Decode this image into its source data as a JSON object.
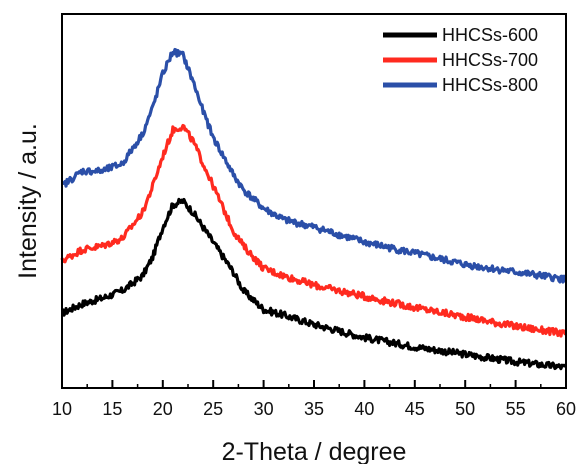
{
  "chart_data": {
    "type": "line",
    "xlabel": "2-Theta / degree",
    "ylabel": "Intensity / a.u.",
    "xlim": [
      10,
      60
    ],
    "ylim": [
      0,
      1
    ],
    "x_ticks": [
      10,
      15,
      20,
      25,
      30,
      35,
      40,
      45,
      50,
      55,
      60
    ],
    "y_ticks_labeled": false,
    "grid": false,
    "legend_position": "top-right",
    "series": [
      {
        "name": "HHCSs-600",
        "color": "#000000",
        "x": [
          10,
          12,
          14,
          16,
          18,
          19,
          20,
          21,
          22,
          23,
          24,
          25,
          26,
          27,
          28,
          30,
          32,
          35,
          40,
          45,
          50,
          55,
          60
        ],
        "y": [
          0.2,
          0.225,
          0.24,
          0.26,
          0.3,
          0.35,
          0.43,
          0.49,
          0.5,
          0.47,
          0.43,
          0.39,
          0.35,
          0.31,
          0.26,
          0.21,
          0.195,
          0.17,
          0.135,
          0.11,
          0.09,
          0.07,
          0.055
        ]
      },
      {
        "name": "HHCSs-700",
        "color": "#ff2a1f",
        "x": [
          10,
          12,
          14,
          16,
          18,
          19,
          20,
          21,
          22,
          23,
          24,
          25,
          26,
          27,
          28,
          30,
          32,
          35,
          40,
          45,
          50,
          55,
          60
        ],
        "y": [
          0.34,
          0.37,
          0.38,
          0.4,
          0.47,
          0.54,
          0.62,
          0.69,
          0.7,
          0.66,
          0.6,
          0.54,
          0.48,
          0.42,
          0.38,
          0.32,
          0.3,
          0.275,
          0.245,
          0.215,
          0.19,
          0.165,
          0.145
        ]
      },
      {
        "name": "HHCSs-800",
        "color": "#2b4fa8",
        "x": [
          10,
          12,
          14,
          16,
          18,
          19,
          20,
          21,
          22,
          23,
          24,
          25,
          26,
          27,
          28,
          30,
          32,
          35,
          40,
          45,
          50,
          55,
          60
        ],
        "y": [
          0.54,
          0.58,
          0.58,
          0.6,
          0.68,
          0.75,
          0.84,
          0.9,
          0.89,
          0.82,
          0.74,
          0.67,
          0.62,
          0.57,
          0.53,
          0.48,
          0.45,
          0.43,
          0.39,
          0.36,
          0.33,
          0.31,
          0.29
        ]
      }
    ]
  }
}
